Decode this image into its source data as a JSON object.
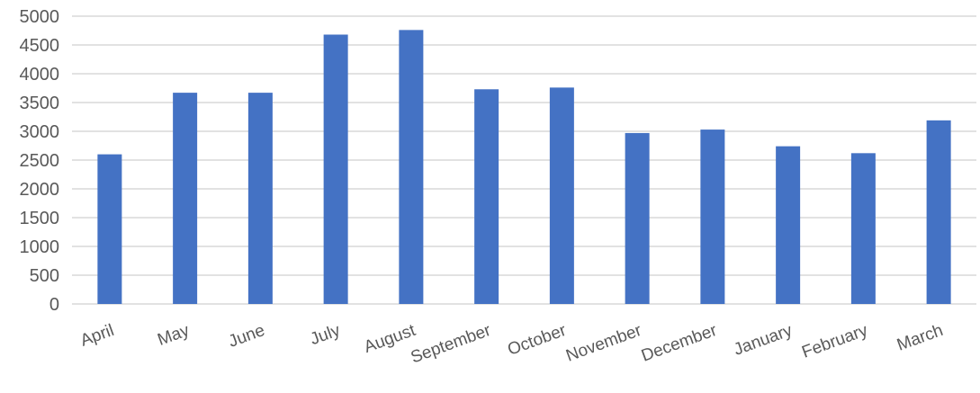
{
  "chart_data": {
    "type": "bar",
    "categories": [
      "April",
      "May",
      "June",
      "July",
      "August",
      "September",
      "October",
      "November",
      "December",
      "January",
      "February",
      "March"
    ],
    "values": [
      2600,
      3670,
      3670,
      4680,
      4760,
      3730,
      3760,
      2970,
      3030,
      2740,
      2620,
      3190
    ],
    "ylim": [
      0,
      5000
    ],
    "yticks": [
      0,
      500,
      1000,
      1500,
      2000,
      2500,
      3000,
      3500,
      4000,
      4500,
      5000
    ],
    "grid": true,
    "legend": "none",
    "bar_color": "#4472c4",
    "grid_color": "#d9d9d9",
    "text_color": "#595959"
  }
}
